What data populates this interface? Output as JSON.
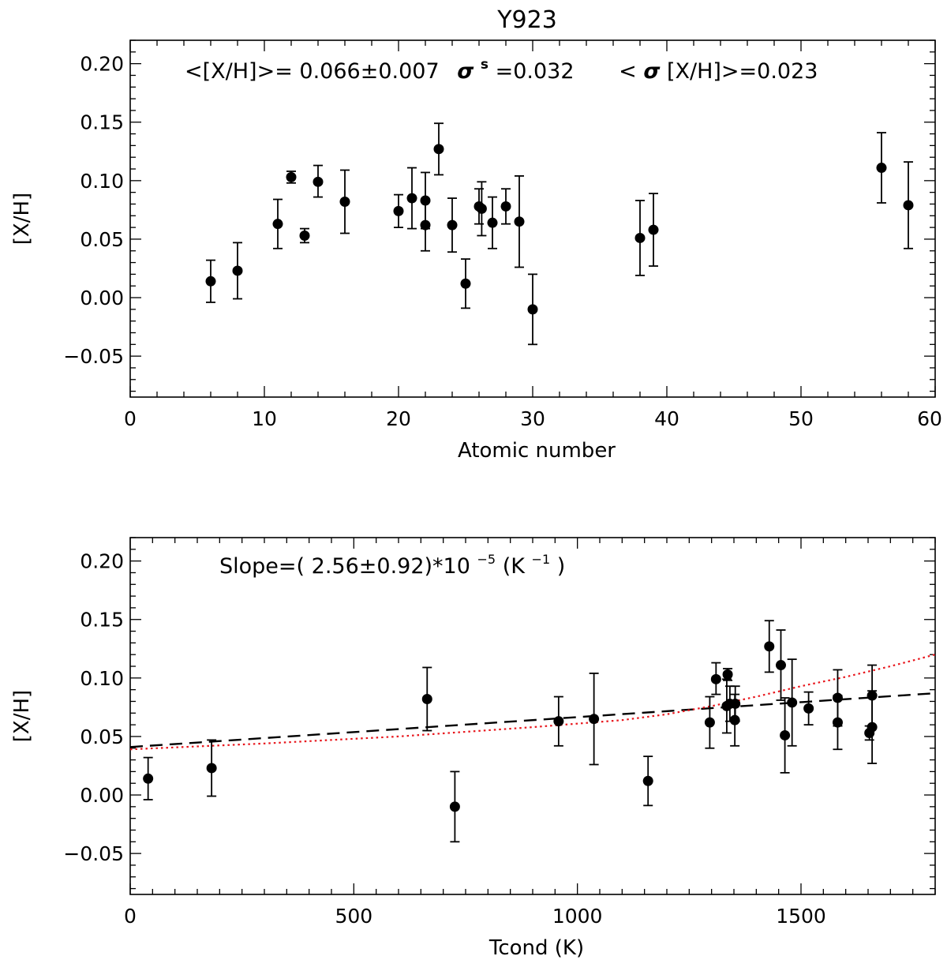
{
  "figure_title": "Y923",
  "chart_data": [
    {
      "type": "scatter",
      "xlabel": "Atomic number",
      "ylabel": "[X/H]",
      "xlim": [
        0,
        60
      ],
      "ylim": [
        -0.085,
        0.22
      ],
      "xticks": [
        0,
        10,
        20,
        30,
        40,
        50,
        60
      ],
      "xtick_labels": [
        "0",
        "10",
        "20",
        "30",
        "40",
        "50",
        "60"
      ],
      "yticks": [
        -0.05,
        0,
        0.05,
        0.1,
        0.15,
        0.2
      ],
      "ytick_labels": [
        "−0.05",
        "0.00",
        "0.05",
        "0.10",
        "0.15",
        "0.20"
      ],
      "annotations": {
        "mean_label": "<[X/H]>= 0.066±0.007",
        "sigma_sym": "σ",
        "sigma_sup": "s",
        "sigma_val": "=0.032",
        "mean_err_left": "<",
        "mean_err_sym": "σ",
        "mean_err_right": "[X/H]>=0.023"
      },
      "points": [
        {
          "x": 6,
          "y": 0.014,
          "lo": -0.004,
          "hi": 0.032
        },
        {
          "x": 8,
          "y": 0.023,
          "lo": -0.001,
          "hi": 0.047
        },
        {
          "x": 11,
          "y": 0.063,
          "lo": 0.042,
          "hi": 0.084
        },
        {
          "x": 12,
          "y": 0.103,
          "lo": 0.098,
          "hi": 0.108
        },
        {
          "x": 13,
          "y": 0.053,
          "lo": 0.047,
          "hi": 0.059
        },
        {
          "x": 14,
          "y": 0.099,
          "lo": 0.086,
          "hi": 0.113
        },
        {
          "x": 16,
          "y": 0.082,
          "lo": 0.055,
          "hi": 0.109
        },
        {
          "x": 20,
          "y": 0.074,
          "lo": 0.06,
          "hi": 0.088
        },
        {
          "x": 21,
          "y": 0.085,
          "lo": 0.059,
          "hi": 0.111
        },
        {
          "x": 22,
          "y": 0.062,
          "lo": 0.04,
          "hi": 0.084
        },
        {
          "x": 22,
          "y": 0.083,
          "lo": 0.059,
          "hi": 0.107
        },
        {
          "x": 23,
          "y": 0.127,
          "lo": 0.105,
          "hi": 0.149
        },
        {
          "x": 24,
          "y": 0.062,
          "lo": 0.039,
          "hi": 0.085
        },
        {
          "x": 25,
          "y": 0.012,
          "lo": -0.009,
          "hi": 0.033
        },
        {
          "x": 26,
          "y": 0.078,
          "lo": 0.063,
          "hi": 0.093
        },
        {
          "x": 26.2,
          "y": 0.076,
          "lo": 0.053,
          "hi": 0.099
        },
        {
          "x": 27,
          "y": 0.064,
          "lo": 0.042,
          "hi": 0.086
        },
        {
          "x": 28,
          "y": 0.078,
          "lo": 0.063,
          "hi": 0.093
        },
        {
          "x": 29,
          "y": 0.065,
          "lo": 0.026,
          "hi": 0.104
        },
        {
          "x": 30,
          "y": -0.01,
          "lo": -0.04,
          "hi": 0.02
        },
        {
          "x": 38,
          "y": 0.051,
          "lo": 0.019,
          "hi": 0.083
        },
        {
          "x": 39,
          "y": 0.058,
          "lo": 0.027,
          "hi": 0.089
        },
        {
          "x": 56,
          "y": 0.111,
          "lo": 0.081,
          "hi": 0.141
        },
        {
          "x": 58,
          "y": 0.079,
          "lo": 0.042,
          "hi": 0.116
        }
      ]
    },
    {
      "type": "scatter",
      "xlabel": "Tcond (K)",
      "ylabel": "[X/H]",
      "xlim": [
        0,
        1800
      ],
      "ylim": [
        -0.085,
        0.22
      ],
      "xticks": [
        0,
        500,
        1000,
        1500
      ],
      "xtick_labels": [
        "0",
        "500",
        "1000",
        "1500"
      ],
      "yticks": [
        -0.05,
        0,
        0.05,
        0.1,
        0.15,
        0.2
      ],
      "ytick_labels": [
        "−0.05",
        "0.00",
        "0.05",
        "0.10",
        "0.15",
        "0.20"
      ],
      "annotations": {
        "slope_prefix": "Slope=( 2.56±0.92)*10",
        "slope_exp": "−5",
        "slope_unit_pre": " (K",
        "slope_unit_exp": "−1",
        "slope_unit_post": ")"
      },
      "points": [
        {
          "x": 40,
          "y": 0.014,
          "lo": -0.004,
          "hi": 0.032
        },
        {
          "x": 182,
          "y": 0.023,
          "lo": -0.001,
          "hi": 0.047
        },
        {
          "x": 664,
          "y": 0.082,
          "lo": 0.055,
          "hi": 0.109
        },
        {
          "x": 726,
          "y": -0.01,
          "lo": -0.04,
          "hi": 0.02
        },
        {
          "x": 958,
          "y": 0.063,
          "lo": 0.042,
          "hi": 0.084
        },
        {
          "x": 1037,
          "y": 0.065,
          "lo": 0.026,
          "hi": 0.104
        },
        {
          "x": 1158,
          "y": 0.012,
          "lo": -0.009,
          "hi": 0.033
        },
        {
          "x": 1296,
          "y": 0.062,
          "lo": 0.04,
          "hi": 0.084
        },
        {
          "x": 1310,
          "y": 0.099,
          "lo": 0.086,
          "hi": 0.113
        },
        {
          "x": 1334,
          "y": 0.076,
          "lo": 0.053,
          "hi": 0.099
        },
        {
          "x": 1336,
          "y": 0.103,
          "lo": 0.098,
          "hi": 0.108
        },
        {
          "x": 1341,
          "y": 0.078,
          "lo": 0.063,
          "hi": 0.093
        },
        {
          "x": 1352,
          "y": 0.064,
          "lo": 0.042,
          "hi": 0.086
        },
        {
          "x": 1353,
          "y": 0.078,
          "lo": 0.063,
          "hi": 0.093
        },
        {
          "x": 1429,
          "y": 0.127,
          "lo": 0.105,
          "hi": 0.149
        },
        {
          "x": 1455,
          "y": 0.111,
          "lo": 0.081,
          "hi": 0.141
        },
        {
          "x": 1464,
          "y": 0.051,
          "lo": 0.019,
          "hi": 0.083
        },
        {
          "x": 1480,
          "y": 0.079,
          "lo": 0.042,
          "hi": 0.116
        },
        {
          "x": 1517,
          "y": 0.074,
          "lo": 0.06,
          "hi": 0.088
        },
        {
          "x": 1582,
          "y": 0.062,
          "lo": 0.039,
          "hi": 0.085
        },
        {
          "x": 1582,
          "y": 0.083,
          "lo": 0.059,
          "hi": 0.107
        },
        {
          "x": 1653,
          "y": 0.053,
          "lo": 0.047,
          "hi": 0.059
        },
        {
          "x": 1659,
          "y": 0.085,
          "lo": 0.059,
          "hi": 0.111
        },
        {
          "x": 1659,
          "y": 0.058,
          "lo": 0.027,
          "hi": 0.089
        }
      ],
      "fit_lines": [
        {
          "style": "dashed",
          "color": "#000000",
          "x": [
            0,
            1800
          ],
          "y": [
            0.041,
            0.087
          ]
        },
        {
          "style": "dotted",
          "color": "#e8151b",
          "x": [
            0,
            300,
            600,
            900,
            1100,
            1200,
            1300,
            1400,
            1500,
            1600,
            1700,
            1800
          ],
          "y": [
            0.039,
            0.044,
            0.05,
            0.058,
            0.064,
            0.069,
            0.076,
            0.084,
            0.093,
            0.101,
            0.11,
            0.12
          ]
        }
      ]
    }
  ]
}
